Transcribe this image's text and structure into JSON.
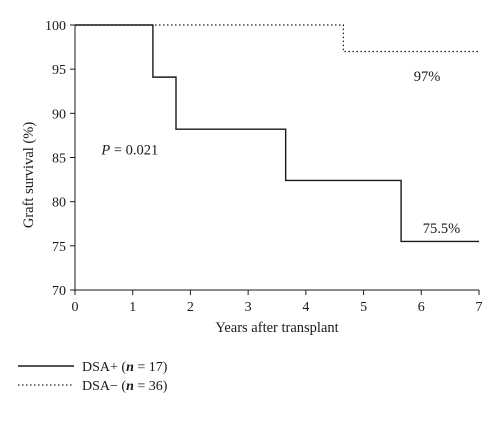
{
  "chart_data": {
    "type": "line",
    "xlabel": "Years after transplant",
    "ylabel": "Graft survival (%)",
    "xlim": [
      0,
      7
    ],
    "ylim": [
      70,
      100
    ],
    "x_ticks": [
      0,
      1,
      2,
      3,
      4,
      5,
      6,
      7
    ],
    "y_ticks": [
      70,
      75,
      80,
      85,
      90,
      95,
      100
    ],
    "grid": false,
    "legend_placement": "bottom-left",
    "series": [
      {
        "name": "DSA+ (n = 17)",
        "label_parts": {
          "prefix": "DSA+ (",
          "n": "n",
          "suffix": " = 17)"
        },
        "line_style": "solid",
        "color": "#1a1a1a",
        "x": [
          0,
          1.35,
          1.35,
          1.75,
          1.75,
          3.65,
          3.65,
          5.65,
          5.65,
          7
        ],
        "y": [
          100,
          100,
          94.1,
          94.1,
          88.2,
          88.2,
          82.4,
          82.4,
          75.5,
          75.5
        ]
      },
      {
        "name": "DSA− (n = 36)",
        "label_parts": {
          "prefix": "DSA− (",
          "n": "n",
          "suffix": " = 36)"
        },
        "line_style": "dotted",
        "color": "#1a1a1a",
        "x": [
          0,
          4.65,
          4.65,
          7
        ],
        "y": [
          100,
          100,
          97,
          97
        ]
      }
    ],
    "annotations": [
      {
        "text": "97%",
        "x": 6.1,
        "y": 94.2
      },
      {
        "text": "75.5%",
        "x": 6.35,
        "y": 77.0
      }
    ],
    "p_annotation": {
      "symbol": "P",
      "rest": " = 0.021",
      "x": 0.95,
      "y": 85.9
    }
  }
}
